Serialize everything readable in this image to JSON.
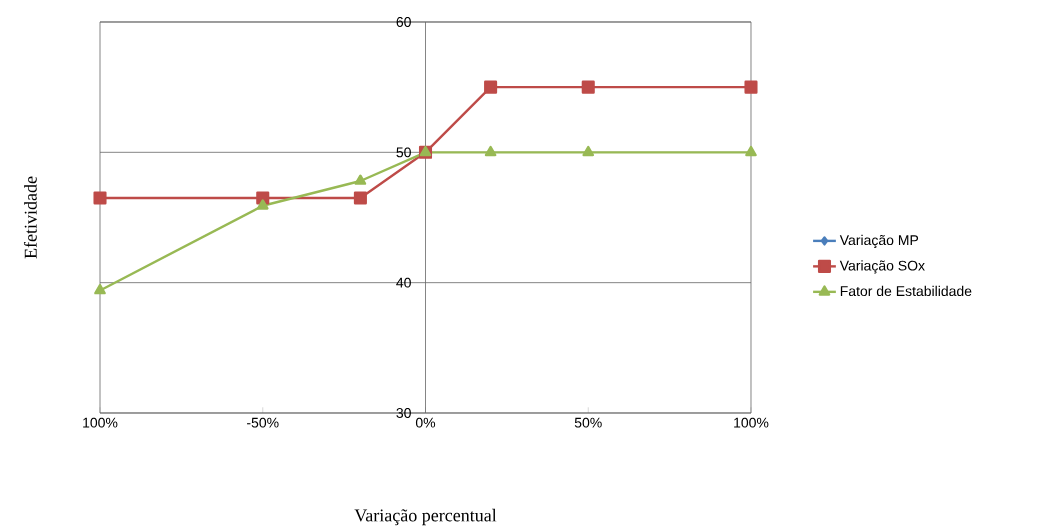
{
  "chart_data": {
    "type": "line",
    "xlabel": "Variação percentual",
    "ylabel": "Efetividade",
    "x": [
      -100,
      -50,
      -20,
      0,
      20,
      50,
      100
    ],
    "series": [
      {
        "name": "Variação MP",
        "color": "#4a7ebb",
        "marker": "diamond",
        "values": [
          null,
          null,
          null,
          null,
          null,
          null,
          null
        ]
      },
      {
        "name": "Variação SOx",
        "color": "#be4b48",
        "marker": "square",
        "values": [
          46.5,
          46.5,
          46.5,
          50,
          55,
          55,
          55
        ]
      },
      {
        "name": "Fator de Estabilidade",
        "color": "#98b954",
        "marker": "triangle",
        "values": [
          39.4,
          45.9,
          47.8,
          50,
          50,
          50,
          50
        ]
      }
    ],
    "xlim": [
      -100,
      100
    ],
    "ylim": [
      30,
      60
    ],
    "xticks": [
      {
        "value": -100,
        "label": "100%"
      },
      {
        "value": -50,
        "label": "-50%"
      },
      {
        "value": 0,
        "label": "0%"
      },
      {
        "value": 50,
        "label": "50%"
      },
      {
        "value": 100,
        "label": "100%"
      }
    ],
    "yticks": [
      30,
      40,
      50,
      60
    ],
    "grid": "y",
    "legend": "right"
  }
}
